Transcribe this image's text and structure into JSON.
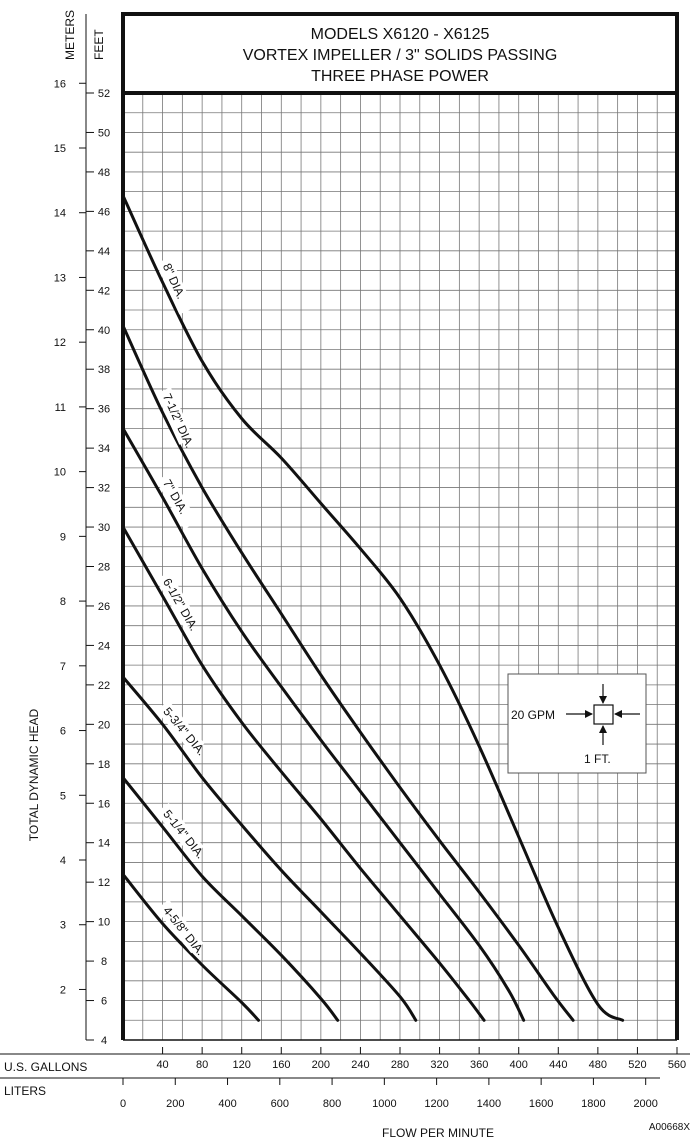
{
  "chart_data": {
    "type": "line",
    "title": [
      "MODELS X6120 - X6125",
      "VORTEX IMPELLER / 3\" SOLIDS PASSING",
      "THREE PHASE POWER"
    ],
    "ylabel": "TOTAL DYNAMIC HEAD",
    "xlabel": "FLOW PER MINUTE",
    "y_axis_unit_left": "METERS",
    "y_axis_unit_right": "FEET",
    "x_axis_unit_top": "U.S. GALLONS",
    "x_axis_unit_bottom": "LITERS",
    "xlim_gpm": [
      0,
      560
    ],
    "ylim_feet": [
      4,
      52
    ],
    "ylim_meters": [
      1.22,
      15.85
    ],
    "feet_ticks": [
      "6",
      "8",
      "10",
      "12",
      "14",
      "16",
      "18",
      "20",
      "22",
      "24",
      "26",
      "28",
      "30",
      "32",
      "34",
      "36",
      "38",
      "40",
      "42",
      "44",
      "46",
      "48",
      "50",
      "52"
    ],
    "meter_ticks": [
      "2",
      "3",
      "4",
      "5",
      "6",
      "7",
      "8",
      "9",
      "10",
      "11",
      "12",
      "13",
      "14",
      "15",
      "16"
    ],
    "gpm_ticks": [
      "40",
      "80",
      "120",
      "160",
      "200",
      "240",
      "280",
      "320",
      "360",
      "400",
      "440",
      "480",
      "520",
      "560"
    ],
    "liter_ticks": [
      "0",
      "200",
      "400",
      "600",
      "800",
      "1000",
      "1200",
      "1400",
      "1600",
      "1800",
      "2000"
    ],
    "grid": true,
    "series": [
      {
        "name": "8\" DIA.",
        "x": [
          0,
          40,
          80,
          120,
          160,
          200,
          240,
          280,
          320,
          360,
          400,
          440,
          480,
          505
        ],
        "y": [
          46.8,
          42.4,
          38.4,
          35.5,
          33.5,
          31.2,
          28.9,
          26.4,
          23.0,
          18.9,
          14.3,
          9.7,
          5.8,
          5.0
        ]
      },
      {
        "name": "7-1/2\" DIA.",
        "x": [
          0,
          40,
          80,
          120,
          160,
          200,
          240,
          280,
          320,
          360,
          400,
          435,
          455
        ],
        "y": [
          40.2,
          35.8,
          32.0,
          28.7,
          25.6,
          22.5,
          19.6,
          16.8,
          14.1,
          11.5,
          8.8,
          6.3,
          5.0
        ]
      },
      {
        "name": "7\" DIA.",
        "x": [
          0,
          40,
          80,
          120,
          160,
          200,
          240,
          280,
          320,
          360,
          390,
          405
        ],
        "y": [
          35.0,
          31.5,
          27.9,
          24.7,
          21.9,
          19.2,
          16.6,
          14.0,
          11.4,
          8.8,
          6.5,
          5.0
        ]
      },
      {
        "name": "6-1/2\" DIA.",
        "x": [
          0,
          40,
          80,
          120,
          160,
          200,
          240,
          280,
          320,
          350,
          365
        ],
        "y": [
          30.0,
          26.5,
          23.0,
          20.1,
          17.6,
          15.2,
          12.7,
          10.3,
          7.9,
          6.0,
          5.0
        ]
      },
      {
        "name": "5-3/4\" DIA.",
        "x": [
          0,
          40,
          80,
          120,
          160,
          200,
          240,
          280,
          296
        ],
        "y": [
          22.4,
          20.0,
          17.3,
          14.9,
          12.6,
          10.5,
          8.4,
          6.2,
          5.0
        ]
      },
      {
        "name": "5-1/4\" DIA.",
        "x": [
          0,
          40,
          80,
          120,
          160,
          200,
          217
        ],
        "y": [
          17.3,
          14.8,
          12.3,
          10.3,
          8.3,
          6.1,
          5.0
        ]
      },
      {
        "name": "4-5/8\" DIA.",
        "x": [
          0,
          40,
          80,
          120,
          137
        ],
        "y": [
          12.4,
          9.9,
          7.8,
          5.9,
          5.0
        ]
      }
    ]
  },
  "inset": {
    "gpm_label": "20 GPM",
    "ft_label": "1 FT."
  },
  "drawing_code": "A00668X"
}
